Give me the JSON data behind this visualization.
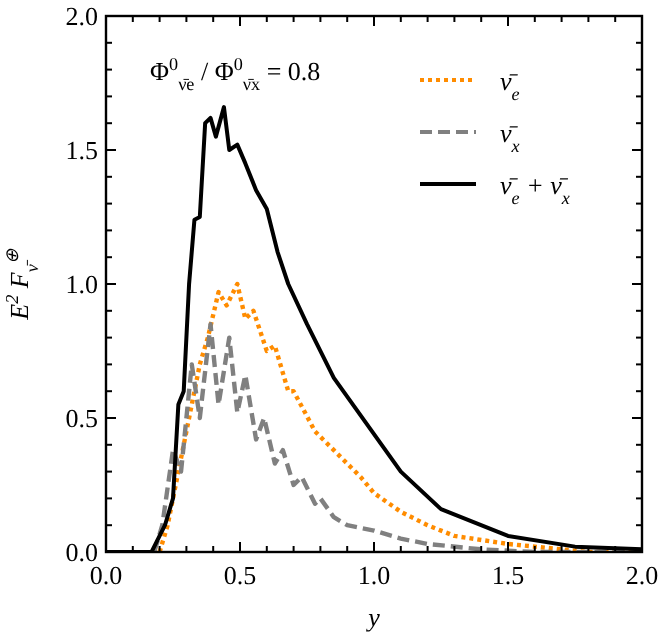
{
  "chart_data": {
    "type": "line",
    "xlabel": "y",
    "ylabel": "E$^{2}$ F$_{ν̄}$$^{⊕}$",
    "annotations": [
      "Φ$^{0}$$_{ν̄e}$ / Φ$^{0}$$_{ν̄x}$ = 0.8"
    ],
    "xlim": [
      0,
      2
    ],
    "ylim": [
      0,
      2
    ],
    "xticks": [
      {
        "value": 0,
        "label": "0.0"
      },
      {
        "value": 0.1,
        "label": null
      },
      {
        "value": 0.2,
        "label": null
      },
      {
        "value": 0.3,
        "label": null
      },
      {
        "value": 0.4,
        "label": null
      },
      {
        "value": 0.5,
        "label": "0.5"
      },
      {
        "value": 0.6,
        "label": null
      },
      {
        "value": 0.7,
        "label": null
      },
      {
        "value": 0.8,
        "label": null
      },
      {
        "value": 0.9,
        "label": null
      },
      {
        "value": 1,
        "label": "1.0"
      },
      {
        "value": 1.1,
        "label": null
      },
      {
        "value": 1.2,
        "label": null
      },
      {
        "value": 1.3,
        "label": null
      },
      {
        "value": 1.4,
        "label": null
      },
      {
        "value": 1.5,
        "label": "1.5"
      },
      {
        "value": 1.6,
        "label": null
      },
      {
        "value": 1.7,
        "label": null
      },
      {
        "value": 1.8,
        "label": null
      },
      {
        "value": 1.9,
        "label": null
      },
      {
        "value": 2,
        "label": "2.0"
      }
    ],
    "yticks": [
      {
        "value": 0,
        "label": "0.0"
      },
      {
        "value": 0.1,
        "label": null
      },
      {
        "value": 0.2,
        "label": null
      },
      {
        "value": 0.3,
        "label": null
      },
      {
        "value": 0.4,
        "label": null
      },
      {
        "value": 0.5,
        "label": "0.5"
      },
      {
        "value": 0.6,
        "label": null
      },
      {
        "value": 0.7,
        "label": null
      },
      {
        "value": 0.8,
        "label": null
      },
      {
        "value": 0.9,
        "label": null
      },
      {
        "value": 1,
        "label": "1.0"
      },
      {
        "value": 1.1,
        "label": null
      },
      {
        "value": 1.2,
        "label": null
      },
      {
        "value": 1.3,
        "label": null
      },
      {
        "value": 1.4,
        "label": null
      },
      {
        "value": 1.5,
        "label": "1.5"
      },
      {
        "value": 1.6,
        "label": null
      },
      {
        "value": 1.7,
        "label": null
      },
      {
        "value": 1.8,
        "label": null
      },
      {
        "value": 1.9,
        "label": null
      },
      {
        "value": 2,
        "label": "2.0"
      }
    ],
    "grid": false,
    "legend": "top right",
    "series": [
      {
        "name": "ν̄$_{e}$",
        "color": "#ff8c00",
        "line_style": "dotted",
        "x": [
          0.2,
          0.23,
          0.27,
          0.31,
          0.35,
          0.38,
          0.42,
          0.45,
          0.49,
          0.52,
          0.55,
          0.6,
          0.63,
          0.68,
          0.7,
          0.78,
          0.85,
          0.95,
          1.0,
          1.1,
          1.2,
          1.3,
          1.5,
          1.7,
          1.8,
          2.0
        ],
        "values": [
          0,
          0.1,
          0.3,
          0.5,
          0.7,
          0.8,
          0.97,
          0.92,
          1.0,
          0.87,
          0.9,
          0.75,
          0.77,
          0.6,
          0.6,
          0.45,
          0.38,
          0.28,
          0.22,
          0.15,
          0.1,
          0.06,
          0.03,
          0.01,
          0,
          0
        ]
      },
      {
        "name": "ν̄$_{x}$",
        "color": "#808080",
        "line_style": "dashed",
        "x": [
          0.18,
          0.21,
          0.25,
          0.28,
          0.32,
          0.35,
          0.39,
          0.42,
          0.46,
          0.49,
          0.52,
          0.56,
          0.59,
          0.63,
          0.66,
          0.7,
          0.73,
          0.78,
          0.8,
          0.85,
          0.9,
          1.0,
          1.1,
          1.2,
          1.4,
          1.6,
          2.0
        ],
        "values": [
          0,
          0.1,
          0.38,
          0.3,
          0.7,
          0.5,
          0.85,
          0.55,
          0.8,
          0.52,
          0.66,
          0.42,
          0.5,
          0.33,
          0.38,
          0.25,
          0.28,
          0.18,
          0.2,
          0.13,
          0.1,
          0.08,
          0.05,
          0.03,
          0.01,
          0,
          0
        ]
      },
      {
        "name": "ν̄$_{e}$ + ν̄$_{x}$",
        "color": "#000000",
        "line_style": "solid",
        "x": [
          0,
          0.17,
          0.22,
          0.25,
          0.27,
          0.29,
          0.31,
          0.33,
          0.35,
          0.37,
          0.39,
          0.41,
          0.44,
          0.46,
          0.49,
          0.52,
          0.56,
          0.6,
          0.64,
          0.68,
          0.75,
          0.85,
          1.1,
          1.25,
          1.5,
          1.75,
          2.0
        ],
        "values": [
          0,
          0,
          0.1,
          0.2,
          0.55,
          0.6,
          1.0,
          1.24,
          1.25,
          1.6,
          1.62,
          1.55,
          1.66,
          1.5,
          1.52,
          1.45,
          1.35,
          1.28,
          1.12,
          1.0,
          0.85,
          0.65,
          0.3,
          0.16,
          0.06,
          0.02,
          0.01
        ]
      }
    ]
  }
}
